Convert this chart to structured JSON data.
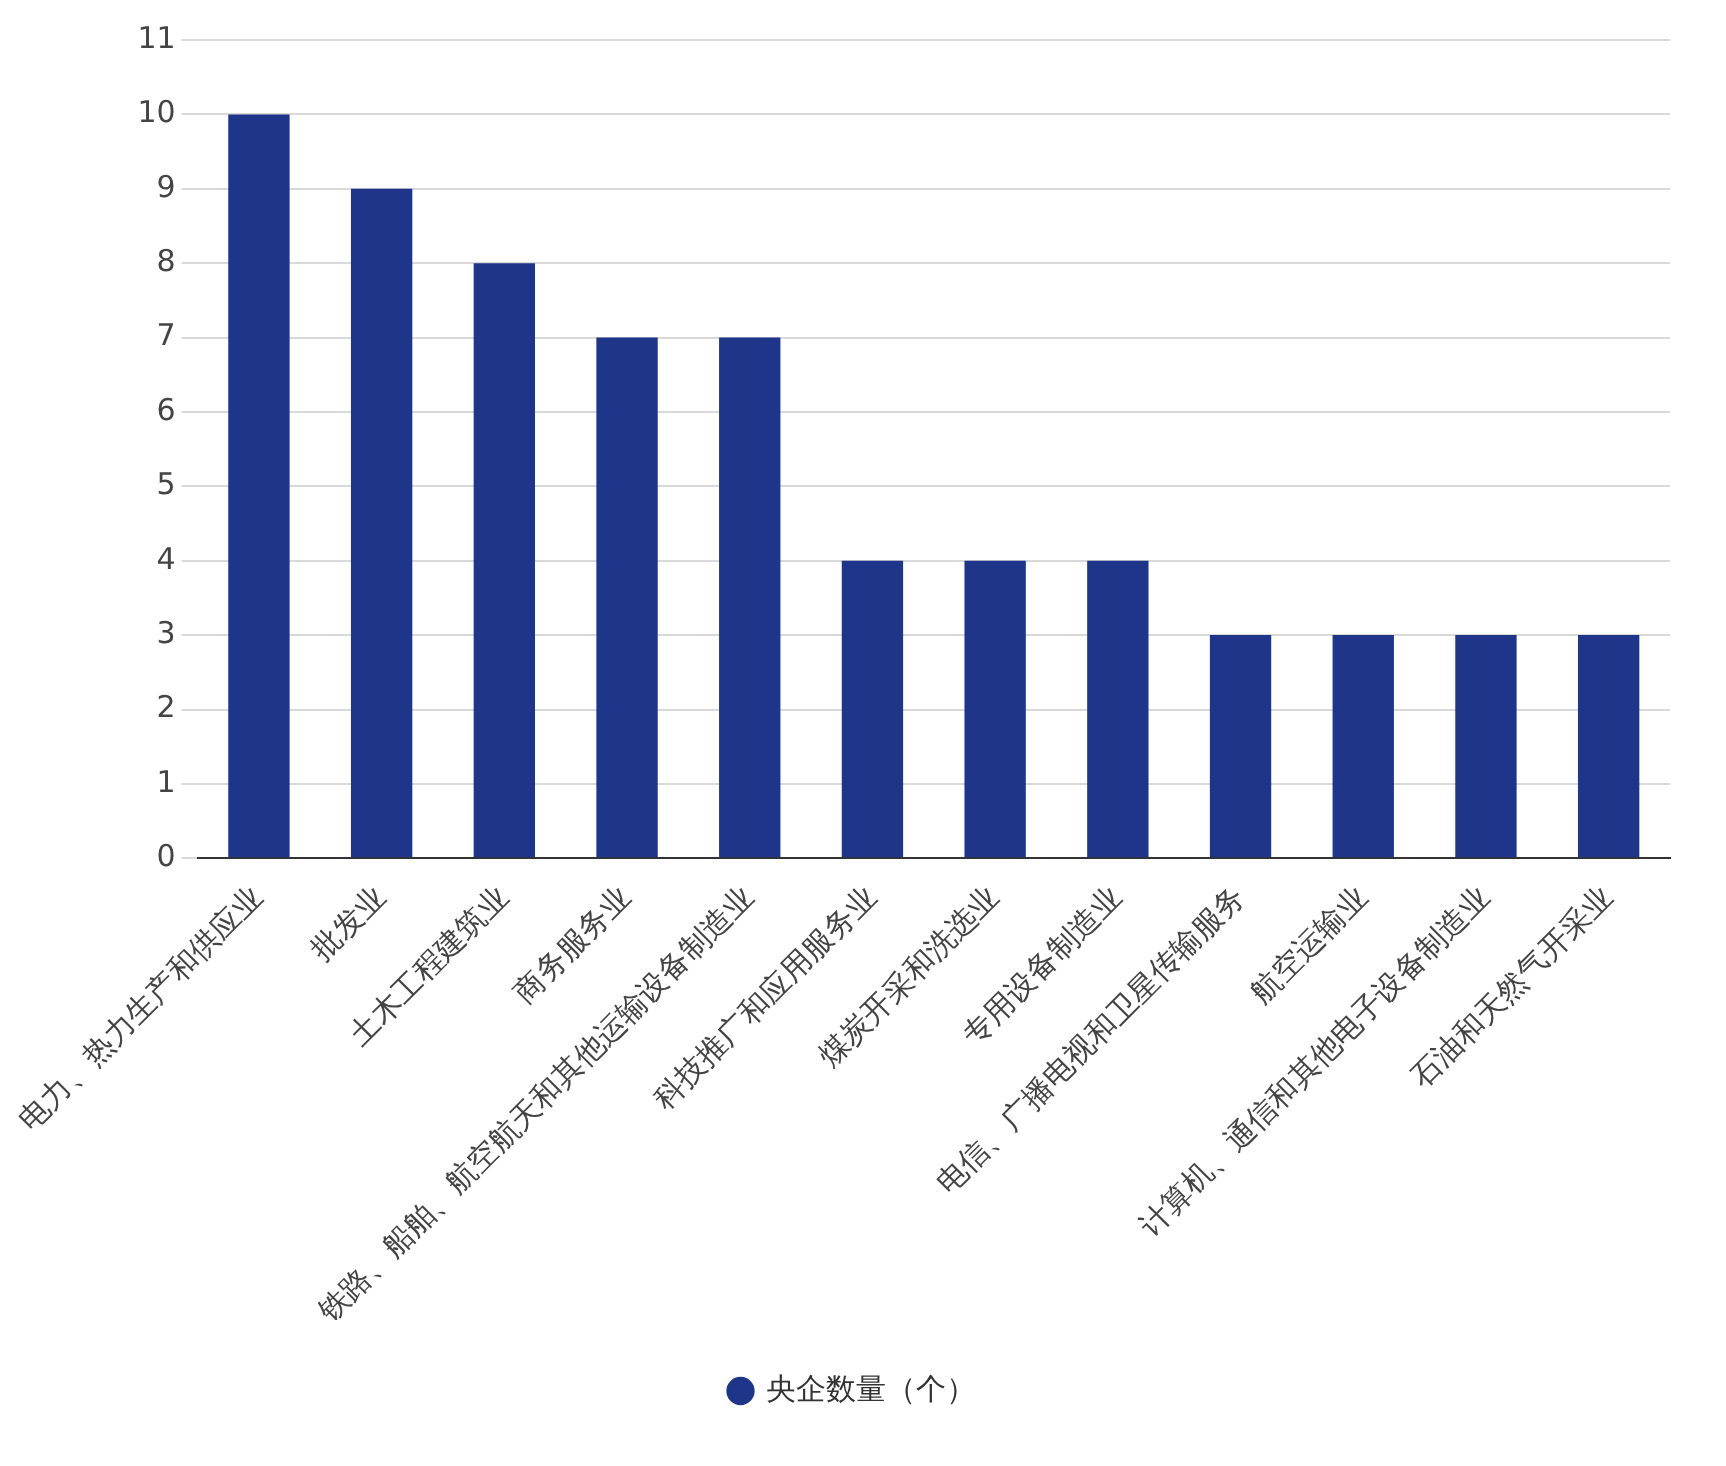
{
  "chart_data": {
    "type": "bar",
    "categories": [
      "电力、热力生产和供应业",
      "批发业",
      "土木工程建筑业",
      "商务服务业",
      "铁路、船舶、航空航天和其他运输设备制造业",
      "科技推广和应用服务业",
      "煤炭开采和洗选业",
      "专用设备制造业",
      "电信、广播电视和卫星传输服务",
      "航空运输业",
      "计算机、通信和其他电子设备制造业",
      "石油和天然气开采业"
    ],
    "series": [
      {
        "name": "央企数量（个）",
        "color": "#1f3589",
        "values": [
          10,
          9,
          8,
          7,
          7,
          4,
          4,
          4,
          3,
          3,
          3,
          3
        ]
      }
    ],
    "ylim": [
      0,
      11
    ],
    "yticks": [
      0,
      1,
      2,
      3,
      4,
      5,
      6,
      7,
      8,
      9,
      10,
      11
    ],
    "grid": "y",
    "legend": "bottom",
    "marker": "circle"
  }
}
